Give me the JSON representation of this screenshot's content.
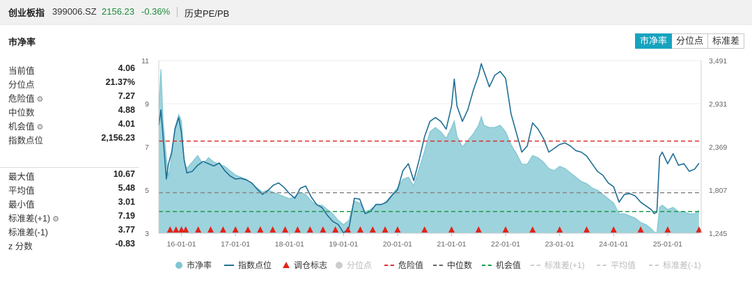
{
  "header": {
    "name": "创业板指",
    "code": "399006.SZ",
    "price": "2156.23",
    "change": "-0.36%",
    "link": "历史PE/PB"
  },
  "panel": {
    "title": "市净率",
    "tabs": [
      {
        "label": "市净率",
        "active": true
      },
      {
        "label": "分位点",
        "active": false
      },
      {
        "label": "标准差",
        "active": false
      }
    ]
  },
  "stats": {
    "group1": [
      {
        "label": "当前值",
        "value": "4.06",
        "gear": false
      },
      {
        "label": "分位点",
        "value": "21.37%",
        "gear": false
      },
      {
        "label": "危险值",
        "value": "7.27",
        "gear": true
      },
      {
        "label": "中位数",
        "value": "4.88",
        "gear": false
      },
      {
        "label": "机会值",
        "value": "4.01",
        "gear": true
      },
      {
        "label": "指数点位",
        "value": "2,156.23",
        "gear": false
      }
    ],
    "group2": [
      {
        "label": "最大值",
        "value": "10.67",
        "gear": false
      },
      {
        "label": "平均值",
        "value": "5.48",
        "gear": false
      },
      {
        "label": "最小值",
        "value": "3.01",
        "gear": false
      },
      {
        "label": "标准差(+1)",
        "value": "7.19",
        "gear": true
      },
      {
        "label": "标准差(-1)",
        "value": "3.77",
        "gear": false
      },
      {
        "label": "z 分数",
        "value": "-0.83",
        "gear": false
      }
    ]
  },
  "colors": {
    "pb_fill": "#9dd3dc",
    "pb_line": "#7fc6d2",
    "index_line": "#1f6e95",
    "danger": "#d9302c",
    "median": "#888888",
    "opportunity": "#1f9a4d",
    "marker": "#e2231a",
    "accent": "#17a3bf"
  },
  "chart_data": {
    "type": "area",
    "x_tick_labels": [
      "16-01-01",
      "17-01-01",
      "18-01-01",
      "19-01-01",
      "20-01-01",
      "21-01-01",
      "22-01-01",
      "23-01-01",
      "24-01-01",
      "25-01-01"
    ],
    "x_range": [
      2015.58,
      2025.62
    ],
    "left_axis": {
      "ticks": [
        "3",
        "5",
        "7",
        "9",
        "11"
      ],
      "range": [
        3,
        11
      ]
    },
    "right_axis": {
      "ticks": [
        "1,245",
        "1,807",
        "2,369",
        "2,931",
        "3,491"
      ],
      "range": [
        1245,
        3491
      ]
    },
    "reference_lines": {
      "danger": 7.27,
      "median": 4.88,
      "opportunity": 4.01
    },
    "series": [
      {
        "name": "市净率",
        "axis": "left",
        "points": [
          [
            2015.58,
            8.6
          ],
          [
            2015.62,
            10.6
          ],
          [
            2015.66,
            8.2
          ],
          [
            2015.72,
            6.5
          ],
          [
            2015.76,
            5.6
          ],
          [
            2015.82,
            6.6
          ],
          [
            2015.88,
            7.9
          ],
          [
            2015.95,
            8.5
          ],
          [
            2016.0,
            8.2
          ],
          [
            2016.05,
            6.3
          ],
          [
            2016.1,
            6.0
          ],
          [
            2016.2,
            6.3
          ],
          [
            2016.3,
            6.6
          ],
          [
            2016.4,
            6.2
          ],
          [
            2016.5,
            6.5
          ],
          [
            2016.6,
            6.3
          ],
          [
            2016.7,
            6.2
          ],
          [
            2016.8,
            6.1
          ],
          [
            2016.9,
            5.9
          ],
          [
            2017.0,
            5.7
          ],
          [
            2017.1,
            5.6
          ],
          [
            2017.2,
            5.5
          ],
          [
            2017.3,
            5.3
          ],
          [
            2017.4,
            5.1
          ],
          [
            2017.5,
            4.9
          ],
          [
            2017.6,
            5.0
          ],
          [
            2017.7,
            4.9
          ],
          [
            2017.8,
            4.8
          ],
          [
            2017.9,
            4.7
          ],
          [
            2018.0,
            4.6
          ],
          [
            2018.1,
            4.7
          ],
          [
            2018.2,
            4.9
          ],
          [
            2018.3,
            4.8
          ],
          [
            2018.4,
            4.5
          ],
          [
            2018.5,
            4.3
          ],
          [
            2018.6,
            4.3
          ],
          [
            2018.7,
            4.1
          ],
          [
            2018.8,
            3.9
          ],
          [
            2018.9,
            3.6
          ],
          [
            2019.0,
            3.4
          ],
          [
            2019.1,
            3.6
          ],
          [
            2019.2,
            4.5
          ],
          [
            2019.3,
            4.4
          ],
          [
            2019.4,
            4.0
          ],
          [
            2019.5,
            4.1
          ],
          [
            2019.6,
            4.3
          ],
          [
            2019.7,
            4.3
          ],
          [
            2019.8,
            4.5
          ],
          [
            2019.9,
            4.8
          ],
          [
            2020.0,
            5.1
          ],
          [
            2020.1,
            5.5
          ],
          [
            2020.2,
            5.6
          ],
          [
            2020.3,
            5.2
          ],
          [
            2020.4,
            6.0
          ],
          [
            2020.5,
            6.8
          ],
          [
            2020.6,
            7.7
          ],
          [
            2020.7,
            7.9
          ],
          [
            2020.8,
            7.7
          ],
          [
            2020.9,
            7.4
          ],
          [
            2021.0,
            7.9
          ],
          [
            2021.05,
            8.2
          ],
          [
            2021.1,
            7.5
          ],
          [
            2021.2,
            7.0
          ],
          [
            2021.3,
            7.3
          ],
          [
            2021.4,
            7.6
          ],
          [
            2021.5,
            8.0
          ],
          [
            2021.55,
            8.4
          ],
          [
            2021.6,
            8.0
          ],
          [
            2021.7,
            7.9
          ],
          [
            2021.8,
            7.9
          ],
          [
            2021.9,
            8.0
          ],
          [
            2022.0,
            7.7
          ],
          [
            2022.1,
            7.1
          ],
          [
            2022.2,
            6.7
          ],
          [
            2022.3,
            6.2
          ],
          [
            2022.4,
            6.2
          ],
          [
            2022.5,
            6.6
          ],
          [
            2022.6,
            6.5
          ],
          [
            2022.7,
            6.3
          ],
          [
            2022.8,
            6.0
          ],
          [
            2022.9,
            5.9
          ],
          [
            2023.0,
            6.1
          ],
          [
            2023.1,
            6.0
          ],
          [
            2023.2,
            5.8
          ],
          [
            2023.3,
            5.6
          ],
          [
            2023.4,
            5.4
          ],
          [
            2023.5,
            5.3
          ],
          [
            2023.6,
            5.1
          ],
          [
            2023.7,
            5.0
          ],
          [
            2023.8,
            4.8
          ],
          [
            2023.9,
            4.6
          ],
          [
            2024.0,
            4.4
          ],
          [
            2024.1,
            3.9
          ],
          [
            2024.2,
            3.9
          ],
          [
            2024.3,
            3.8
          ],
          [
            2024.4,
            3.7
          ],
          [
            2024.5,
            3.5
          ],
          [
            2024.6,
            3.4
          ],
          [
            2024.7,
            3.2
          ],
          [
            2024.75,
            3.05
          ],
          [
            2024.8,
            3.0
          ],
          [
            2024.85,
            4.2
          ],
          [
            2024.9,
            4.3
          ],
          [
            2025.0,
            4.1
          ],
          [
            2025.1,
            4.2
          ],
          [
            2025.2,
            4.0
          ],
          [
            2025.3,
            4.0
          ],
          [
            2025.4,
            3.9
          ],
          [
            2025.5,
            3.9
          ],
          [
            2025.58,
            4.06
          ]
        ]
      },
      {
        "name": "指数点位",
        "axis": "right",
        "points": [
          [
            2015.58,
            2650
          ],
          [
            2015.62,
            2850
          ],
          [
            2015.66,
            2500
          ],
          [
            2015.72,
            1950
          ],
          [
            2015.76,
            2150
          ],
          [
            2015.82,
            2300
          ],
          [
            2015.88,
            2600
          ],
          [
            2015.95,
            2750
          ],
          [
            2016.0,
            2550
          ],
          [
            2016.05,
            2200
          ],
          [
            2016.1,
            2030
          ],
          [
            2016.2,
            2050
          ],
          [
            2016.3,
            2130
          ],
          [
            2016.4,
            2180
          ],
          [
            2016.5,
            2150
          ],
          [
            2016.6,
            2120
          ],
          [
            2016.7,
            2160
          ],
          [
            2016.8,
            2060
          ],
          [
            2016.9,
            1990
          ],
          [
            2017.0,
            1950
          ],
          [
            2017.1,
            1960
          ],
          [
            2017.2,
            1940
          ],
          [
            2017.3,
            1900
          ],
          [
            2017.4,
            1820
          ],
          [
            2017.5,
            1750
          ],
          [
            2017.6,
            1800
          ],
          [
            2017.7,
            1870
          ],
          [
            2017.8,
            1900
          ],
          [
            2017.9,
            1840
          ],
          [
            2018.0,
            1760
          ],
          [
            2018.1,
            1700
          ],
          [
            2018.2,
            1830
          ],
          [
            2018.3,
            1860
          ],
          [
            2018.4,
            1720
          ],
          [
            2018.5,
            1620
          ],
          [
            2018.6,
            1580
          ],
          [
            2018.7,
            1480
          ],
          [
            2018.8,
            1400
          ],
          [
            2018.9,
            1360
          ],
          [
            2019.0,
            1250
          ],
          [
            2019.1,
            1310
          ],
          [
            2019.2,
            1700
          ],
          [
            2019.3,
            1690
          ],
          [
            2019.4,
            1500
          ],
          [
            2019.5,
            1530
          ],
          [
            2019.6,
            1620
          ],
          [
            2019.7,
            1620
          ],
          [
            2019.8,
            1650
          ],
          [
            2019.9,
            1740
          ],
          [
            2020.0,
            1810
          ],
          [
            2020.1,
            2060
          ],
          [
            2020.2,
            2150
          ],
          [
            2020.3,
            1930
          ],
          [
            2020.4,
            2200
          ],
          [
            2020.5,
            2500
          ],
          [
            2020.6,
            2700
          ],
          [
            2020.7,
            2750
          ],
          [
            2020.8,
            2700
          ],
          [
            2020.9,
            2600
          ],
          [
            2021.0,
            2900
          ],
          [
            2021.05,
            3250
          ],
          [
            2021.1,
            2900
          ],
          [
            2021.2,
            2700
          ],
          [
            2021.3,
            2850
          ],
          [
            2021.4,
            3100
          ],
          [
            2021.5,
            3300
          ],
          [
            2021.55,
            3450
          ],
          [
            2021.6,
            3350
          ],
          [
            2021.7,
            3150
          ],
          [
            2021.8,
            3300
          ],
          [
            2021.9,
            3350
          ],
          [
            2022.0,
            3260
          ],
          [
            2022.1,
            2800
          ],
          [
            2022.2,
            2550
          ],
          [
            2022.3,
            2300
          ],
          [
            2022.4,
            2380
          ],
          [
            2022.5,
            2680
          ],
          [
            2022.6,
            2600
          ],
          [
            2022.7,
            2480
          ],
          [
            2022.8,
            2300
          ],
          [
            2022.9,
            2350
          ],
          [
            2023.0,
            2400
          ],
          [
            2023.1,
            2420
          ],
          [
            2023.2,
            2380
          ],
          [
            2023.3,
            2320
          ],
          [
            2023.4,
            2300
          ],
          [
            2023.5,
            2250
          ],
          [
            2023.6,
            2150
          ],
          [
            2023.7,
            2050
          ],
          [
            2023.8,
            2000
          ],
          [
            2023.9,
            1900
          ],
          [
            2024.0,
            1850
          ],
          [
            2024.1,
            1650
          ],
          [
            2024.2,
            1750
          ],
          [
            2024.3,
            1760
          ],
          [
            2024.4,
            1730
          ],
          [
            2024.5,
            1650
          ],
          [
            2024.6,
            1600
          ],
          [
            2024.7,
            1550
          ],
          [
            2024.75,
            1500
          ],
          [
            2024.8,
            1520
          ],
          [
            2024.85,
            2240
          ],
          [
            2024.9,
            2300
          ],
          [
            2025.0,
            2150
          ],
          [
            2025.1,
            2280
          ],
          [
            2025.2,
            2130
          ],
          [
            2025.3,
            2150
          ],
          [
            2025.4,
            2050
          ],
          [
            2025.5,
            2080
          ],
          [
            2025.58,
            2156
          ]
        ]
      }
    ],
    "rebalance_markers": [
      2015.79,
      2015.9,
      2016.0,
      2016.08,
      2016.31,
      2016.54,
      2016.77,
      2017.0,
      2017.23,
      2017.46,
      2017.69,
      2017.92,
      2018.15,
      2018.38,
      2018.62,
      2018.85,
      2019.08,
      2019.31,
      2019.54,
      2019.77,
      2020.0,
      2020.5,
      2021.0,
      2021.5,
      2022.0,
      2022.5,
      2023.0,
      2023.5,
      2024.0,
      2024.5,
      2025.0,
      2025.58
    ],
    "legend": [
      {
        "label": "市净率",
        "type": "circle",
        "color": "#7fc6d2",
        "enabled": true
      },
      {
        "label": "指数点位",
        "type": "line",
        "color": "#1f6e95",
        "enabled": true
      },
      {
        "label": "调仓标志",
        "type": "triangle",
        "color": "#e2231a",
        "enabled": true
      },
      {
        "label": "分位点",
        "type": "circle",
        "color": "#cccccc",
        "enabled": false
      },
      {
        "label": "危险值",
        "type": "dash",
        "color": "#d9302c",
        "enabled": true
      },
      {
        "label": "中位数",
        "type": "dash",
        "color": "#666666",
        "enabled": true
      },
      {
        "label": "机会值",
        "type": "dash",
        "color": "#1f9a4d",
        "enabled": true
      },
      {
        "label": "标准差(+1)",
        "type": "dash",
        "color": "#cccccc",
        "enabled": false
      },
      {
        "label": "平均值",
        "type": "dash",
        "color": "#cccccc",
        "enabled": false
      },
      {
        "label": "标准差(-1)",
        "type": "dash",
        "color": "#cccccc",
        "enabled": false
      }
    ]
  }
}
